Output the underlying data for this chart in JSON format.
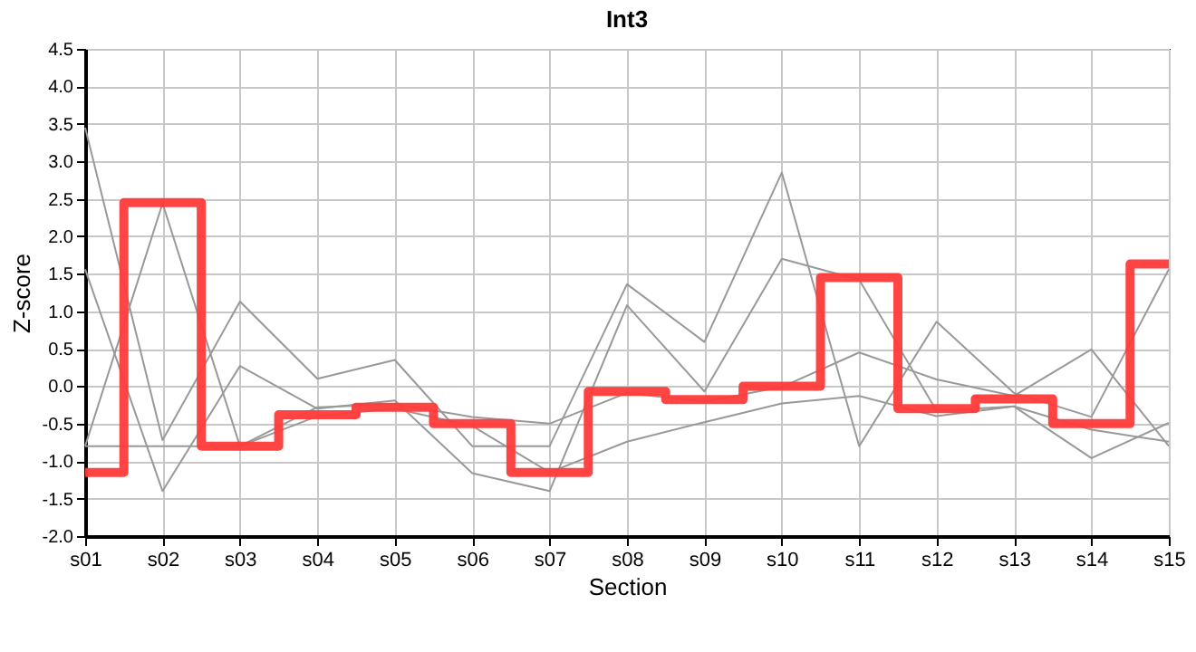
{
  "chart_data": {
    "type": "line",
    "title": "Int3",
    "xlabel": "Section",
    "ylabel": "Z-score",
    "categories": [
      "s01",
      "s02",
      "s03",
      "s04",
      "s05",
      "s06",
      "s07",
      "s08",
      "s09",
      "s10",
      "s11",
      "s12",
      "s13",
      "s14",
      "s15"
    ],
    "series": [
      {
        "color": "#999999",
        "values": [
          3.45,
          -0.72,
          1.13,
          0.1,
          0.35,
          -0.8,
          -0.8,
          1.36,
          0.59,
          2.85,
          -0.8,
          0.86,
          -0.09,
          -0.41,
          1.56
        ]
      },
      {
        "color": "#999999",
        "values": [
          1.56,
          -1.4,
          0.27,
          -0.3,
          -0.19,
          -1.16,
          -1.4,
          1.08,
          -0.07,
          1.7,
          1.42,
          -0.33,
          -0.27,
          -0.96,
          -0.49
        ]
      },
      {
        "color": "#999999",
        "values": [
          -0.8,
          2.44,
          -0.8,
          -0.28,
          -0.24,
          -0.41,
          -0.5,
          -0.09,
          -0.21,
          -0.01,
          0.45,
          0.09,
          -0.13,
          0.49,
          -0.8
        ]
      },
      {
        "color": "#999999",
        "values": [
          -0.8,
          -0.8,
          -0.8,
          -0.4,
          -0.3,
          -0.53,
          -1.15,
          -0.74,
          -0.48,
          -0.23,
          -0.13,
          -0.4,
          -0.27,
          -0.58,
          -0.74
        ]
      },
      {
        "type": "step",
        "color": "#ff3a3a",
        "values": [
          -1.15,
          2.45,
          -0.8,
          -0.38,
          -0.28,
          -0.5,
          -1.15,
          -0.07,
          -0.18,
          0.0,
          1.45,
          -0.3,
          -0.17,
          -0.5,
          1.63
        ]
      }
    ],
    "ylim": [
      -2.0,
      4.5
    ],
    "yticks": [
      {
        "value": -2,
        "label": "-2.0"
      },
      -1.5,
      {
        "value": -1,
        "label": "-1.0"
      },
      -0.5,
      {
        "value": 0,
        "label": "0.0"
      },
      0.5,
      {
        "value": 1,
        "label": "1.0"
      },
      1.5,
      {
        "value": 2,
        "label": "2.0"
      },
      2.5,
      {
        "value": 3,
        "label": "3.0"
      },
      3.5,
      {
        "value": 4,
        "label": "4.0"
      },
      4.5
    ],
    "grid": true,
    "marker": "none",
    "line_style": "solid"
  }
}
